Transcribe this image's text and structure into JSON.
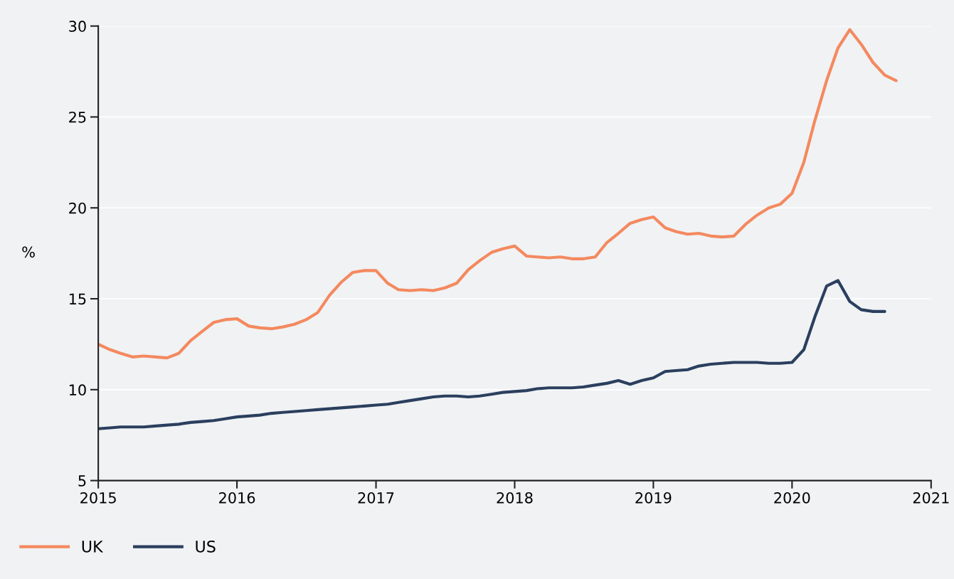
{
  "chart_data": {
    "type": "line",
    "ylabel": "%",
    "x": [
      "2015-01",
      "2015-02",
      "2015-03",
      "2015-04",
      "2015-05",
      "2015-06",
      "2015-07",
      "2015-08",
      "2015-09",
      "2015-10",
      "2015-11",
      "2015-12",
      "2016-01",
      "2016-02",
      "2016-03",
      "2016-04",
      "2016-05",
      "2016-06",
      "2016-07",
      "2016-08",
      "2016-09",
      "2016-10",
      "2016-11",
      "2016-12",
      "2017-01",
      "2017-02",
      "2017-03",
      "2017-04",
      "2017-05",
      "2017-06",
      "2017-07",
      "2017-08",
      "2017-09",
      "2017-10",
      "2017-11",
      "2017-12",
      "2018-01",
      "2018-02",
      "2018-03",
      "2018-04",
      "2018-05",
      "2018-06",
      "2018-07",
      "2018-08",
      "2018-09",
      "2018-10",
      "2018-11",
      "2018-12",
      "2019-01",
      "2019-02",
      "2019-03",
      "2019-04",
      "2019-05",
      "2019-06",
      "2019-07",
      "2019-08",
      "2019-09",
      "2019-10",
      "2019-11",
      "2019-12",
      "2020-01",
      "2020-02",
      "2020-03",
      "2020-04",
      "2020-05",
      "2020-06",
      "2020-07",
      "2020-08",
      "2020-09",
      "2020-10"
    ],
    "series": [
      {
        "name": "UK",
        "color": "#f4895f",
        "values": [
          12.5,
          12.2,
          12.0,
          11.8,
          11.85,
          11.8,
          11.75,
          12.0,
          12.7,
          13.2,
          13.7,
          13.85,
          13.9,
          13.5,
          13.4,
          13.35,
          13.45,
          13.6,
          13.85,
          14.25,
          15.2,
          15.9,
          16.45,
          16.55,
          16.55,
          15.85,
          15.5,
          15.45,
          15.5,
          15.45,
          15.6,
          15.85,
          16.6,
          17.1,
          17.55,
          17.75,
          17.9,
          17.35,
          17.3,
          17.25,
          17.3,
          17.2,
          17.2,
          17.3,
          18.1,
          18.6,
          19.15,
          19.35,
          19.5,
          18.9,
          18.7,
          18.55,
          18.6,
          18.45,
          18.4,
          18.45,
          19.1,
          19.6,
          20.0,
          20.2,
          20.8,
          22.5,
          24.8,
          27.0,
          28.8,
          29.8,
          29.0,
          28.0,
          27.3,
          27.0
        ]
      },
      {
        "name": "US",
        "color": "#2b3f5e",
        "values": [
          7.85,
          7.9,
          7.95,
          7.95,
          7.95,
          8.0,
          8.05,
          8.1,
          8.2,
          8.25,
          8.3,
          8.4,
          8.5,
          8.55,
          8.6,
          8.7,
          8.75,
          8.8,
          8.85,
          8.9,
          8.95,
          9.0,
          9.05,
          9.1,
          9.15,
          9.2,
          9.3,
          9.4,
          9.5,
          9.6,
          9.65,
          9.65,
          9.6,
          9.65,
          9.75,
          9.85,
          9.9,
          9.95,
          10.05,
          10.1,
          10.1,
          10.1,
          10.15,
          10.25,
          10.35,
          10.5,
          10.3,
          10.5,
          10.65,
          11.0,
          11.05,
          11.1,
          11.3,
          11.4,
          11.45,
          11.5,
          11.5,
          11.5,
          11.45,
          11.45,
          11.5,
          12.2,
          14.0,
          15.7,
          16.0,
          14.85,
          14.4,
          14.3,
          14.3,
          null
        ]
      }
    ],
    "xlim": [
      "2015",
      "2021"
    ],
    "xticks": [
      "2015",
      "2016",
      "2017",
      "2018",
      "2019",
      "2020",
      "2021"
    ],
    "ylim": [
      5,
      30
    ],
    "yticks": [
      5,
      10,
      15,
      20,
      25,
      30
    ],
    "grid": "y",
    "legend": "bottom left",
    "marker": "none",
    "line_style": "solid"
  }
}
